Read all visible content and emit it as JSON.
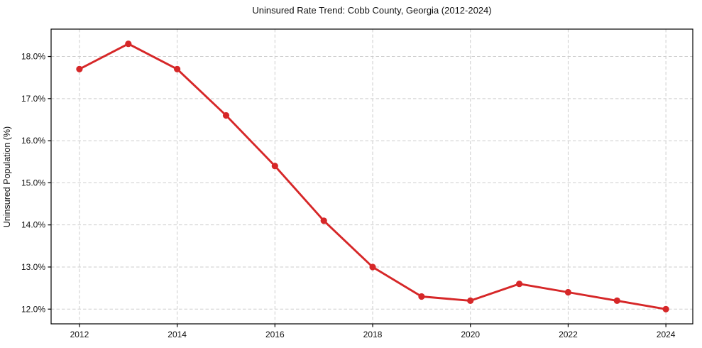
{
  "figure": {
    "background": "#ffffff"
  },
  "chart_data": {
    "type": "line",
    "title": "Uninsured Rate Trend: Cobb County, Georgia (2012-2024)",
    "xlabel": "",
    "ylabel": "Uninsured Population (%)",
    "x": [
      2012,
      2013,
      2014,
      2015,
      2016,
      2017,
      2018,
      2019,
      2020,
      2021,
      2022,
      2023,
      2024
    ],
    "values": [
      17.7,
      18.3,
      17.7,
      16.6,
      15.4,
      14.1,
      13.0,
      12.3,
      12.2,
      12.6,
      12.4,
      12.2,
      12.0
    ],
    "xticks": [
      {
        "value": 2012,
        "label": "2012"
      },
      {
        "value": 2014,
        "label": "2014"
      },
      {
        "value": 2016,
        "label": "2016"
      },
      {
        "value": 2018,
        "label": "2018"
      },
      {
        "value": 2020,
        "label": "2020"
      },
      {
        "value": 2022,
        "label": "2022"
      },
      {
        "value": 2024,
        "label": "2024"
      }
    ],
    "yticks": [
      {
        "value": 12.0,
        "label": "12.0%"
      },
      {
        "value": 13.0,
        "label": "13.0%"
      },
      {
        "value": 14.0,
        "label": "14.0%"
      },
      {
        "value": 15.0,
        "label": "15.0%"
      },
      {
        "value": 16.0,
        "label": "16.0%"
      },
      {
        "value": 17.0,
        "label": "17.0%"
      },
      {
        "value": 18.0,
        "label": "18.0%"
      }
    ],
    "xlim": [
      2011.42,
      2024.55
    ],
    "ylim": [
      11.65,
      18.65
    ],
    "grid": true,
    "legend": "none",
    "line_color": "#d62728",
    "marker": "circle",
    "marker_color": "#d62728",
    "grid_color": "#cdcdcd",
    "spine_color": "#000000",
    "background": "#ffffff"
  }
}
